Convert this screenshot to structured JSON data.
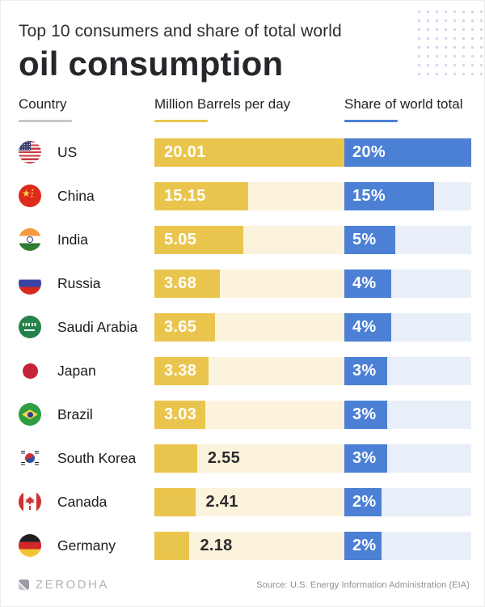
{
  "header": {
    "subtitle": "Top 10 consumers and share of total world",
    "title": "oil consumption"
  },
  "columns": {
    "country": "Country",
    "barrels": "Million Barrels per day",
    "share": "Share of world total"
  },
  "theme": {
    "bar-yellow": "#eac54e",
    "track-yellow": "#fcf3dc",
    "bar-blue": "#4b80d5",
    "track-blue": "#e9eff8",
    "dot": "#ccd8ef"
  },
  "chart_data": {
    "type": "bar",
    "title": "Top 10 consumers and share of total world oil consumption",
    "categories": [
      "US",
      "China",
      "India",
      "Russia",
      "Saudi Arabia",
      "Japan",
      "Brazil",
      "South Korea",
      "Canada",
      "Germany"
    ],
    "series": [
      {
        "name": "Million Barrels per day",
        "values": [
          20.01,
          15.15,
          5.05,
          3.68,
          3.65,
          3.38,
          3.03,
          2.55,
          2.41,
          2.18
        ]
      },
      {
        "name": "Share of world total",
        "unit": "%",
        "values": [
          20,
          15,
          5,
          4,
          4,
          3,
          3,
          3,
          2,
          2
        ]
      }
    ],
    "legend_position": "column-headers",
    "grid": false,
    "source": "Source: U.S. Energy Information Administration (EIA)"
  },
  "rows": [
    {
      "country": "US",
      "flag_icon": "us-flag-icon",
      "barrels_label": "20.01",
      "barrels_pct": 100,
      "share_label": "20%",
      "share_pct": 100
    },
    {
      "country": "China",
      "flag_icon": "china-flag-icon",
      "barrels_label": "15.15",
      "barrels_pct": 49.5,
      "share_label": "15%",
      "share_pct": 71
    },
    {
      "country": "India",
      "flag_icon": "india-flag-icon",
      "barrels_label": "5.05",
      "barrels_pct": 47,
      "share_label": "5%",
      "share_pct": 40
    },
    {
      "country": "Russia",
      "flag_icon": "russia-flag-icon",
      "barrels_label": "3.68",
      "barrels_pct": 34.5,
      "share_label": "4%",
      "share_pct": 37
    },
    {
      "country": "Saudi Arabia",
      "flag_icon": "saudi-arabia-flag-icon",
      "barrels_label": "3.65",
      "barrels_pct": 32,
      "share_label": "4%",
      "share_pct": 37
    },
    {
      "country": "Japan",
      "flag_icon": "japan-flag-icon",
      "barrels_label": "3.38",
      "barrels_pct": 28.5,
      "share_label": "3%",
      "share_pct": 33.5
    },
    {
      "country": "Brazil",
      "flag_icon": "brazil-flag-icon",
      "barrels_label": "3.03",
      "barrels_pct": 27,
      "share_label": "3%",
      "share_pct": 33.5
    },
    {
      "country": "South Korea",
      "flag_icon": "south-korea-flag-icon",
      "barrels_label": "2.55",
      "barrels_pct": 22.5,
      "share_label": "3%",
      "share_pct": 33.5
    },
    {
      "country": "Canada",
      "flag_icon": "canada-flag-icon",
      "barrels_label": "2.41",
      "barrels_pct": 21.5,
      "share_label": "2%",
      "share_pct": 29
    },
    {
      "country": "Germany",
      "flag_icon": "germany-flag-icon",
      "barrels_label": "2.18",
      "barrels_pct": 18.5,
      "share_label": "2%",
      "share_pct": 29
    }
  ],
  "footer": {
    "brand": "ZERODHA",
    "source": "Source: U.S. Energy Information Administration (EIA)"
  }
}
